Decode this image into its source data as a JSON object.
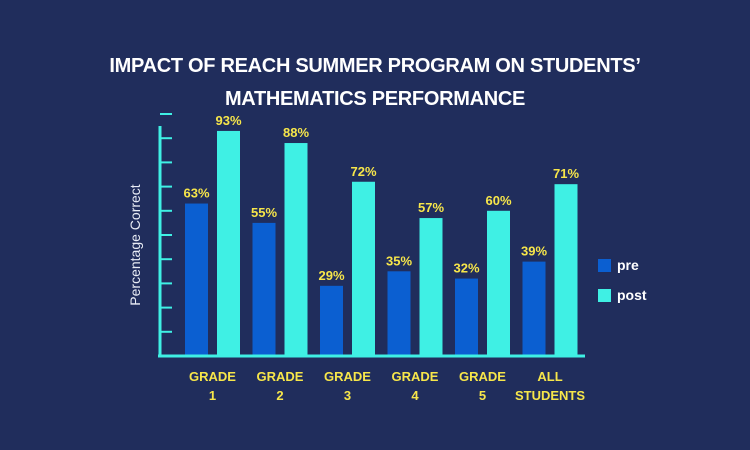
{
  "title_lines": [
    "IMPACT OF REACH SUMMER PROGRAM ON STUDENTS’",
    "MATHEMATICS PERFORMANCE"
  ],
  "colors": {
    "background": "#202d5c",
    "pre": "#0b5fd1",
    "post": "#3ff0e4",
    "axis": "#3ff0e4",
    "value_label": "#f7e64a",
    "category_label": "#f7e64a"
  },
  "chart_data": {
    "type": "bar",
    "title": "IMPACT OF REACH SUMMER PROGRAM ON STUDENTS’ MATHEMATICS PERFORMANCE",
    "ylabel": "Percentage Correct",
    "xlabel": "",
    "ylim": [
      0,
      100
    ],
    "categories": [
      [
        "GRADE",
        "1"
      ],
      [
        "GRADE",
        "2"
      ],
      [
        "GRADE",
        "3"
      ],
      [
        "GRADE",
        "4"
      ],
      [
        "GRADE",
        "5"
      ],
      [
        "ALL",
        "STUDENTS"
      ]
    ],
    "series": [
      {
        "name": "pre",
        "values": [
          63,
          55,
          29,
          35,
          32,
          39
        ],
        "labels": [
          "63%",
          "55%",
          "29%",
          "35%",
          "32%",
          "39%"
        ]
      },
      {
        "name": "post",
        "values": [
          93,
          88,
          72,
          57,
          60,
          71
        ],
        "labels": [
          "93%",
          "88%",
          "72%",
          "57%",
          "60%",
          "71%"
        ]
      }
    ],
    "legend_position": "right",
    "grid": false
  }
}
